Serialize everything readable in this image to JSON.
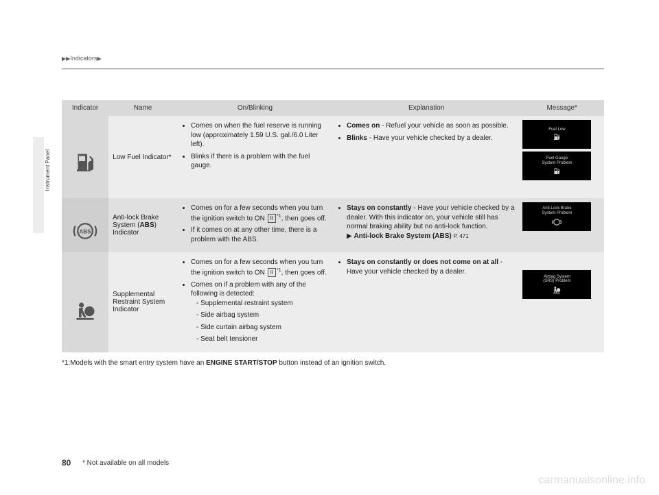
{
  "breadcrumb": {
    "label": "Indicators"
  },
  "sideLabel": "Instrument Panel",
  "headers": {
    "indicator": "Indicator",
    "name": "Name",
    "onBlinking": "On/Blinking",
    "explanation": "Explanation",
    "message": "Message*"
  },
  "rows": [
    {
      "name_html": "Low Fuel Indicator*",
      "on_html": "<ul class='bullets'><li>Comes on when the fuel reserve is running low (approximately 1.59 U.S. gal./6.0 Liter left).</li><li>Blinks if there is a problem with the fuel gauge.</li></ul>",
      "exp_html": "<ul class='bullets'><li><b>Comes on</b> - Refuel your vehicle as soon as possible.</li><li><b>Blinks</b> - Have your vehicle checked by a dealer.</li></ul>",
      "msg1": "Fuel Low",
      "msg2": "Fuel Gauge\nSystem Problem"
    },
    {
      "name_html": "Anti-lock Brake System (<b>ABS</b>) Indicator",
      "on_html": "<ul class='bullets'><li>Comes on for a few seconds when you turn the ignition switch to ON <span class='ign-box'>II</span><span class='sup'>*1</span>, then goes off.</li><li>If it comes on at any other time, there is a problem with the ABS.</li></ul>",
      "exp_html": "<ul class='bullets'><li><b>Stays on constantly</b> - Have your vehicle checked by a dealer. With this indicator on, your vehicle still has normal braking ability but no anti-lock function.<br><span class='ref-arrow'>▶</span> <b>Anti-lock Brake System (ABS)</b> <span style='font-size:8px'>P. 471</span></li></ul>",
      "msg1": "Anti-Lock Brake\nSystem Problem"
    },
    {
      "name_html": "Supplemental Restraint System Indicator",
      "on_html": "<ul class='bullets'><li>Comes on for a few seconds when you turn the ignition switch to ON <span class='ign-box'>II</span><span class='sup'>*1</span>, then goes off.</li><li>Comes on if a problem with any of the following is detected:<ul class='sub'><li>Supplemental restraint system</li><li>Side airbag system</li><li>Side curtain airbag system</li><li>Seat belt tensioner</li></ul></li></ul>",
      "exp_html": "<ul class='bullets'><li><b>Stays on constantly or does not come on at all</b> - Have your vehicle checked by a dealer.</li></ul>",
      "msg1": "Airbag System\n(SRS) Problem"
    }
  ],
  "footnote_html": "*1:Models with the smart entry system have an <b>ENGINE START/STOP</b> button instead of an ignition switch.",
  "pageNumber": "80",
  "footNote": "* Not available on all models",
  "watermark": "carmanualsonline.info",
  "colors": {
    "headerBg": "#d9d9d9",
    "rowA": "#ededed",
    "rowB": "#e0e0e0",
    "msgBg": "#000000",
    "msgFg": "#d9d9d9"
  }
}
